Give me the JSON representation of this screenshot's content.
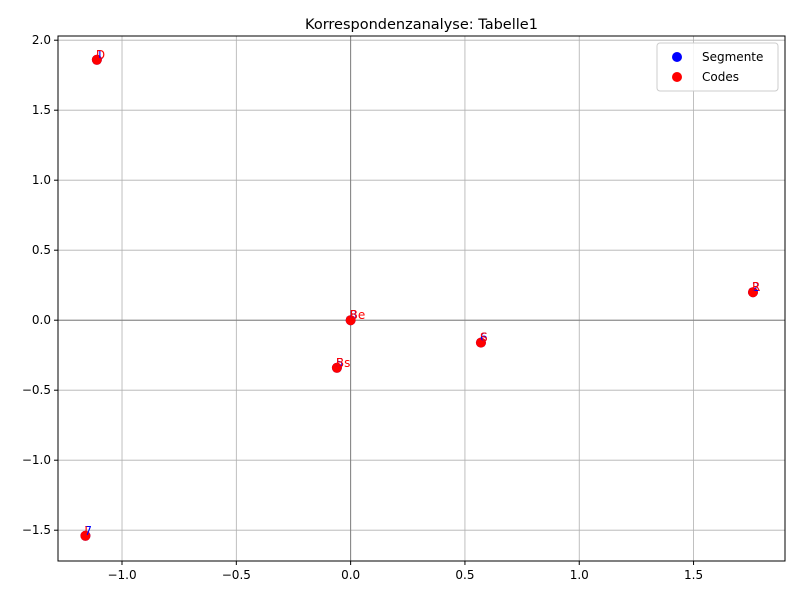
{
  "chart_data": {
    "type": "scatter",
    "title": "Korrespondenzanalyse: Tabelle1",
    "xlabel": "",
    "ylabel": "",
    "xlim": [
      -1.28,
      1.9
    ],
    "ylim": [
      -1.72,
      2.03
    ],
    "xticks": [
      -1.0,
      -0.5,
      0.0,
      0.5,
      1.0,
      1.5
    ],
    "xtick_labels": [
      "−1.0",
      "−0.5",
      "0.0",
      "0.5",
      "1.0",
      "1.5"
    ],
    "yticks": [
      -1.5,
      -1.0,
      -0.5,
      0.0,
      0.5,
      1.0,
      1.5,
      2.0
    ],
    "ytick_labels": [
      "−1.5",
      "−1.0",
      "−0.5",
      "0.0",
      "0.5",
      "1.0",
      "1.5",
      "2.0"
    ],
    "grid": true,
    "reference_lines": {
      "x": 0,
      "y": 0
    },
    "legend_position": "top-right",
    "series": [
      {
        "name": "Segmente",
        "color": "#0000ff",
        "points": [
          {
            "x": -1.11,
            "y": 1.86,
            "label": "1"
          },
          {
            "x": 0.0,
            "y": 0.0,
            "label": "8"
          },
          {
            "x": -0.06,
            "y": -0.34,
            "label": "5"
          },
          {
            "x": 0.57,
            "y": -0.16,
            "label": "6"
          },
          {
            "x": 1.76,
            "y": 0.2,
            "label": "2"
          },
          {
            "x": -1.16,
            "y": -1.54,
            "label": "7"
          }
        ]
      },
      {
        "name": "Codes",
        "color": "#ff0000",
        "points": [
          {
            "x": -1.11,
            "y": 1.86,
            "label": "D"
          },
          {
            "x": 0.0,
            "y": 0.0,
            "label": "Be"
          },
          {
            "x": -0.06,
            "y": -0.34,
            "label": "Bs"
          },
          {
            "x": 0.57,
            "y": -0.16,
            "label": "S"
          },
          {
            "x": 1.76,
            "y": 0.2,
            "label": "R"
          },
          {
            "x": -1.16,
            "y": -1.54,
            "label": "J"
          }
        ]
      }
    ]
  }
}
